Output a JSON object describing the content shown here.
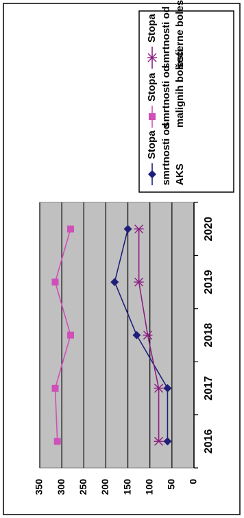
{
  "chart_data": {
    "type": "line",
    "orientation": "rotated-90-ccw",
    "categories": [
      "2016",
      "2017",
      "2018",
      "2019",
      "2020"
    ],
    "ylim": [
      0,
      350
    ],
    "yticks": [
      "0",
      "50",
      "100",
      "150",
      "200",
      "250",
      "300",
      "350"
    ],
    "grid": true,
    "plot_background": "#c0c0c0",
    "legend_position": "top",
    "series": [
      {
        "name_lines": [
          "Stopa",
          "smrtnosti od",
          "AKS"
        ],
        "values": [
          60,
          60,
          130,
          180,
          150
        ],
        "color": "#1f1f7a",
        "marker": "diamond"
      },
      {
        "name_lines": [
          "Stopa",
          "smrtnosti od",
          "malignih bolesti"
        ],
        "values": [
          310,
          315,
          280,
          315,
          280
        ],
        "color": "#d04fb8",
        "marker": "square"
      },
      {
        "name_lines": [
          "Stopa",
          "smrtnosti od",
          "šećerne bolesti"
        ],
        "values": [
          80,
          80,
          105,
          125,
          125
        ],
        "color": "#8b1e83",
        "marker": "asterisk"
      }
    ]
  }
}
